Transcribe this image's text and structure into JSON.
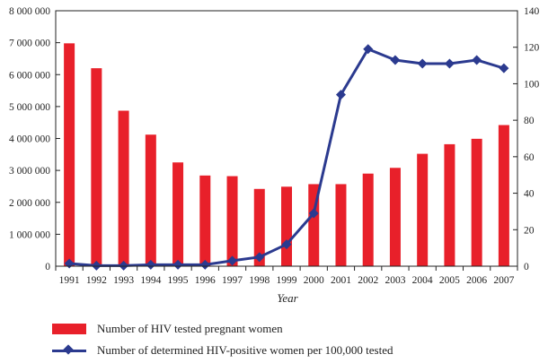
{
  "chart_data": {
    "type": "bar+line",
    "xlabel": "Year",
    "categories": [
      "1991",
      "1992",
      "1993",
      "1994",
      "1995",
      "1996",
      "1997",
      "1998",
      "1999",
      "2000",
      "2001",
      "2002",
      "2003",
      "2004",
      "2005",
      "2006",
      "2007"
    ],
    "y_left": {
      "ylim": [
        0,
        8000000
      ],
      "ticks": [
        0,
        1000000,
        2000000,
        3000000,
        4000000,
        5000000,
        6000000,
        7000000,
        8000000
      ],
      "tick_labels": [
        "0",
        "1 000 000",
        "2 000 000",
        "3 000 000",
        "4 000 000",
        "5 000 000",
        "6 000 000",
        "7 000 000",
        "8 000 000"
      ]
    },
    "y_right": {
      "ylim": [
        0,
        140
      ],
      "ticks": [
        0,
        20,
        40,
        60,
        80,
        100,
        120,
        140
      ],
      "tick_labels": [
        "0",
        "20",
        "40",
        "60",
        "80",
        "100",
        "120",
        "140"
      ]
    },
    "series": [
      {
        "name": "Number of HIV tested pregnant women",
        "kind": "bar",
        "axis": "left",
        "color": "#e8202a",
        "values": [
          6980000,
          6200000,
          4870000,
          4120000,
          3250000,
          2840000,
          2820000,
          2420000,
          2490000,
          2570000,
          2570000,
          2900000,
          3080000,
          3520000,
          3820000,
          3990000,
          4420000
        ]
      },
      {
        "name": "Number of determined HIV-positive women per 100,000 tested",
        "kind": "line",
        "axis": "right",
        "color": "#2b3a8f",
        "marker": "diamond",
        "values": [
          1.5,
          0.3,
          0.3,
          0.8,
          0.8,
          0.8,
          3.0,
          5.0,
          12.0,
          29.0,
          94.0,
          119.0,
          113.0,
          111.0,
          111.0,
          113.0,
          108.5
        ]
      }
    ],
    "legend_position": "bottom-left",
    "grid": false
  }
}
